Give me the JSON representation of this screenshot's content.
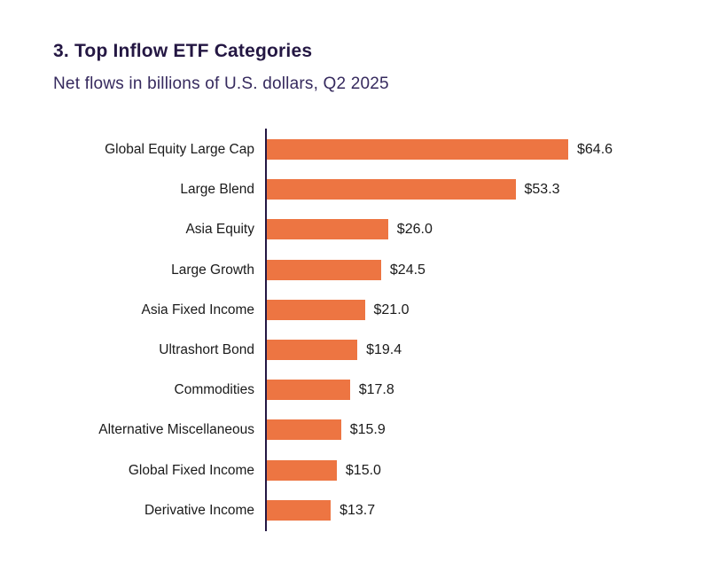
{
  "title": "3. Top Inflow ETF Categories",
  "subtitle": "Net flows in billions of U.S. dollars, Q2 2025",
  "colors": {
    "bar": "#ED7542",
    "title": "#241743",
    "subtitle": "#362A5E",
    "axis": "#241743",
    "label": "#1A1A1A"
  },
  "chart_data": {
    "type": "bar",
    "orientation": "horizontal",
    "title": "3. Top Inflow ETF Categories",
    "subtitle": "Net flows in billions of U.S. dollars, Q2 2025",
    "unit": "billions of U.S. dollars",
    "period": "Q2 2025",
    "categories": [
      "Global Equity Large Cap",
      "Large Blend",
      "Asia Equity",
      "Large Growth",
      "Asia Fixed Income",
      "Ultrashort Bond",
      "Commodities",
      "Alternative Miscellaneous",
      "Global Fixed Income",
      "Derivative Income"
    ],
    "values": [
      64.6,
      53.3,
      26.0,
      24.5,
      21.0,
      19.4,
      17.8,
      15.9,
      15.0,
      13.7
    ],
    "value_labels": [
      "$64.6",
      "$53.3",
      "$26.0",
      "$24.5",
      "$21.0",
      "$19.4",
      "$17.8",
      "$15.9",
      "$15.0",
      "$13.7"
    ],
    "xlabel": "",
    "ylabel": "",
    "xlim": [
      0,
      65
    ],
    "grid": false,
    "legend": false
  }
}
